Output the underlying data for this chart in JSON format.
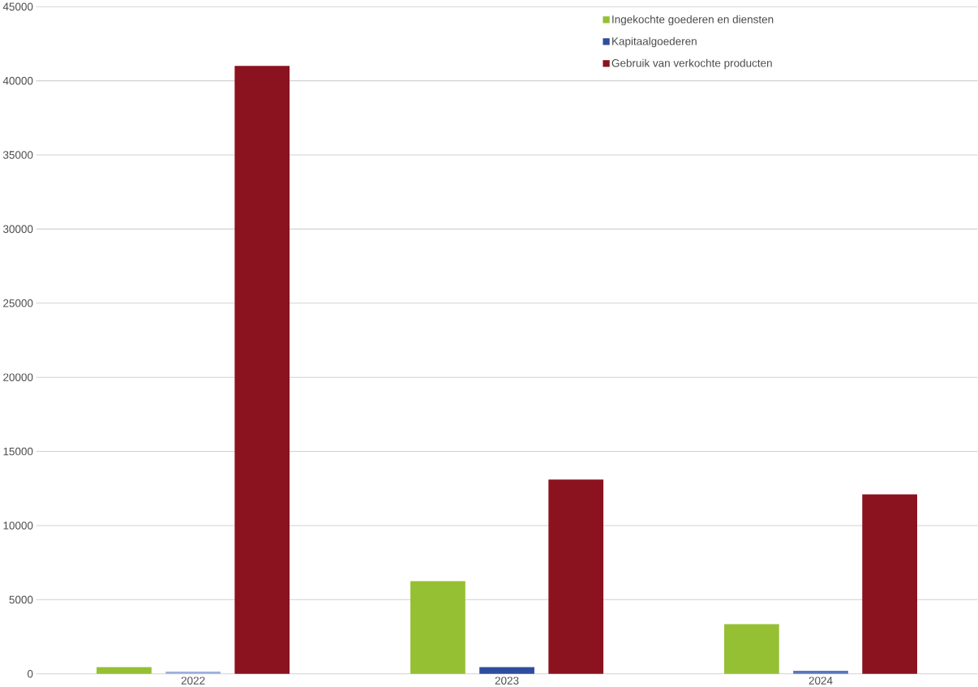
{
  "chart_data": {
    "type": "bar",
    "categories": [
      "2022",
      "2023",
      "2024"
    ],
    "series": [
      {
        "name": "Ingekochte goederen en diensten",
        "color": "#95c033",
        "values": [
          450,
          6250,
          3350
        ]
      },
      {
        "name": "Kapitaalgoederen",
        "color": "#2f4d9e",
        "colors": [
          "#9fb0dc",
          "#2f4d9e",
          "#5a76bf"
        ],
        "values": [
          150,
          450,
          200
        ]
      },
      {
        "name": "Gebruik van verkochte producten",
        "color": "#8b121f",
        "values": [
          41000,
          13100,
          12100
        ]
      }
    ],
    "ylim": [
      0,
      45000
    ],
    "yticks": [
      0,
      5000,
      10000,
      15000,
      20000,
      25000,
      30000,
      35000,
      40000,
      45000
    ],
    "grid": "y",
    "legend": "top right"
  }
}
